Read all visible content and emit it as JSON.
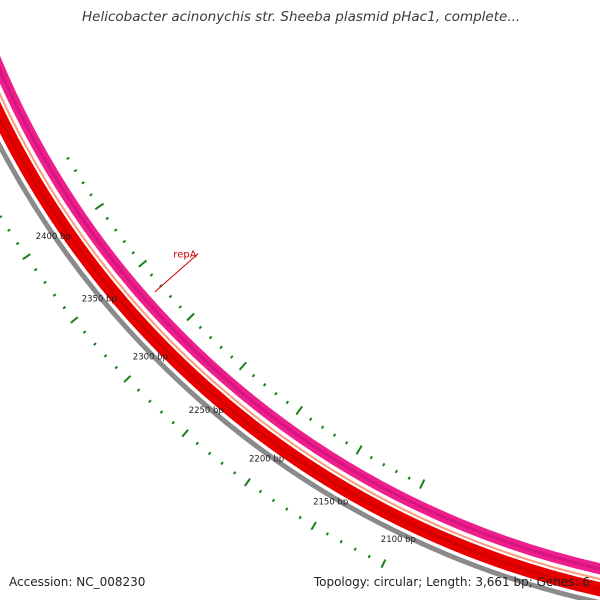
{
  "title": "Helicobacter acinonychis str. Sheeba plasmid pHac1, complete...",
  "footer": {
    "accession": "Accession: NC_008230",
    "summary": "Topology: circular; Length: 3,661 bp; Genes: 6"
  },
  "ticks": [
    {
      "label": "2400 bp"
    },
    {
      "label": "2350 bp"
    },
    {
      "label": "2300 bp"
    },
    {
      "label": "2250 bp"
    },
    {
      "label": "2200 bp"
    },
    {
      "label": "2150 bp"
    },
    {
      "label": "2100 bp"
    }
  ],
  "features": [
    {
      "label": "repA",
      "color": "#cc0000"
    }
  ],
  "colors": {
    "backbone": "#8a8a8a",
    "cds_track": "#e80000",
    "gene_track": "#ee1f8c",
    "ticks": "#1a7f1a",
    "feature_label": "#cc0000"
  }
}
